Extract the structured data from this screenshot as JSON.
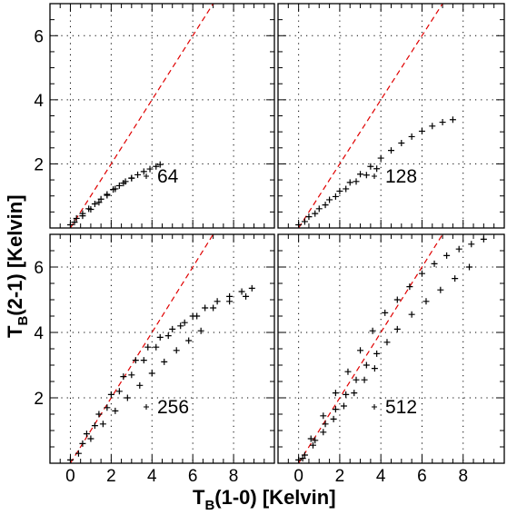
{
  "figure": {
    "xlabel_main": "T",
    "xlabel_sub": "B",
    "xlabel_rest": "(1-0) [Kelvin]",
    "ylabel_main": "T",
    "ylabel_sub": "B",
    "ylabel_rest": "(2-1) [Kelvin]"
  },
  "chart_data": [
    {
      "type": "scatter",
      "panel": "top-left",
      "label": "64",
      "xlim": [
        -1,
        10
      ],
      "ylim": [
        0,
        7
      ],
      "xticks": [
        0,
        2,
        4,
        6,
        8
      ],
      "yticks": [
        2,
        4,
        6
      ],
      "show_xticklabels": false,
      "show_yticklabels": true,
      "grid": true,
      "reference_line": {
        "style": "dashed",
        "color": "#e00000",
        "slope": 1
      },
      "point_color": "#000000",
      "series": [
        {
          "x": [
            0,
            0.3,
            0.6,
            0.9,
            1.2,
            1.5,
            1.8,
            2.1,
            2.4,
            2.7,
            3.0,
            3.3,
            3.6,
            3.9,
            4.2,
            4.4
          ],
          "y": [
            0.1,
            0.3,
            0.45,
            0.6,
            0.75,
            0.9,
            1.05,
            1.2,
            1.32,
            1.45,
            1.55,
            1.66,
            1.76,
            1.84,
            1.92,
            1.98
          ]
        },
        {
          "x": [
            0.2,
            0.6,
            1.0,
            1.4,
            1.8,
            2.2,
            2.6,
            3.0
          ],
          "y": [
            0.18,
            0.38,
            0.58,
            0.8,
            1.02,
            1.22,
            1.4,
            1.56
          ]
        }
      ]
    },
    {
      "type": "scatter",
      "panel": "top-right",
      "label": "128",
      "xlim": [
        -1,
        10
      ],
      "ylim": [
        0,
        7
      ],
      "xticks": [
        0,
        2,
        4,
        6,
        8
      ],
      "yticks": [
        2,
        4,
        6
      ],
      "show_xticklabels": false,
      "show_yticklabels": false,
      "grid": true,
      "reference_line": {
        "style": "dashed",
        "color": "#e00000",
        "slope": 1
      },
      "point_color": "#000000",
      "series": [
        {
          "x": [
            0,
            0.5,
            1.0,
            1.5,
            2.0,
            2.5,
            3.0,
            3.5,
            4.0,
            4.5,
            5.0,
            5.5,
            6.0,
            6.5,
            7.0,
            7.5
          ],
          "y": [
            0.1,
            0.35,
            0.6,
            0.88,
            1.15,
            1.42,
            1.68,
            1.92,
            2.18,
            2.42,
            2.65,
            2.85,
            3.02,
            3.18,
            3.3,
            3.38
          ]
        },
        {
          "x": [
            0.3,
            0.8,
            1.3,
            1.8,
            2.3,
            2.8,
            3.3,
            3.8
          ],
          "y": [
            0.2,
            0.45,
            0.72,
            0.98,
            1.22,
            1.45,
            1.65,
            1.85
          ]
        }
      ]
    },
    {
      "type": "scatter",
      "panel": "bottom-left",
      "label": "256",
      "xlim": [
        -1,
        10
      ],
      "ylim": [
        0,
        7
      ],
      "xticks": [
        0,
        2,
        4,
        6,
        8
      ],
      "yticks": [
        2,
        4,
        6
      ],
      "show_xticklabels": true,
      "show_yticklabels": true,
      "grid": true,
      "reference_line": {
        "style": "dashed",
        "color": "#e00000",
        "slope": 1
      },
      "point_color": "#000000",
      "series": [
        {
          "x": [
            0,
            0.6,
            1.2,
            1.8,
            2.4,
            3.0,
            3.6,
            4.2,
            4.8,
            5.4,
            6.0,
            6.6,
            7.2,
            7.8,
            8.4,
            8.9
          ],
          "y": [
            0.1,
            0.6,
            1.15,
            1.7,
            2.2,
            2.7,
            3.15,
            3.55,
            3.9,
            4.2,
            4.5,
            4.75,
            4.95,
            5.1,
            5.25,
            5.35
          ]
        },
        {
          "x": [
            0.4,
            1.0,
            1.6,
            2.2,
            2.8,
            3.4,
            4.0,
            4.6,
            5.2,
            5.8,
            6.4
          ],
          "y": [
            0.3,
            0.75,
            1.2,
            1.6,
            2.0,
            2.38,
            2.75,
            3.1,
            3.45,
            3.75,
            4.05
          ]
        },
        {
          "x": [
            0.8,
            1.4,
            2.0,
            2.6,
            3.2,
            3.8,
            4.4,
            5.0,
            5.6,
            6.2,
            7.0,
            7.8,
            8.6
          ],
          "y": [
            0.9,
            1.5,
            2.1,
            2.65,
            3.15,
            3.55,
            3.85,
            4.1,
            4.3,
            4.5,
            4.75,
            4.95,
            5.1
          ]
        }
      ]
    },
    {
      "type": "scatter",
      "panel": "bottom-right",
      "label": "512",
      "xlim": [
        -1,
        10
      ],
      "ylim": [
        0,
        7
      ],
      "xticks": [
        0,
        2,
        4,
        6,
        8
      ],
      "yticks": [
        2,
        4,
        6
      ],
      "show_xticklabels": true,
      "show_yticklabels": false,
      "grid": true,
      "reference_line": {
        "style": "dashed",
        "color": "#e00000",
        "slope": 1
      },
      "point_color": "#000000",
      "series": [
        {
          "x": [
            0,
            0.6,
            1.2,
            1.8,
            2.4,
            3.0,
            3.6,
            4.2,
            4.8,
            5.4,
            6.0,
            6.6,
            7.2,
            7.8,
            8.4,
            9.0
          ],
          "y": [
            0.1,
            0.75,
            1.45,
            2.15,
            2.8,
            3.45,
            4.05,
            4.6,
            5.0,
            5.4,
            5.8,
            6.1,
            6.35,
            6.55,
            6.7,
            6.85
          ]
        },
        {
          "x": [
            0.3,
            0.8,
            1.3,
            1.8,
            2.3,
            2.8,
            3.3,
            3.8,
            4.3,
            4.8,
            5.5,
            6.2,
            6.9,
            7.6,
            8.3
          ],
          "y": [
            0.25,
            0.7,
            1.2,
            1.65,
            2.1,
            2.55,
            3.0,
            3.35,
            3.7,
            4.1,
            4.55,
            4.95,
            5.3,
            5.65,
            6.0
          ]
        },
        {
          "x": [
            0.2,
            0.7,
            1.2,
            1.7,
            2.2,
            2.7,
            3.2,
            3.7
          ],
          "y": [
            0.15,
            0.55,
            0.95,
            1.35,
            1.75,
            2.15,
            2.55,
            2.9
          ]
        }
      ]
    }
  ]
}
